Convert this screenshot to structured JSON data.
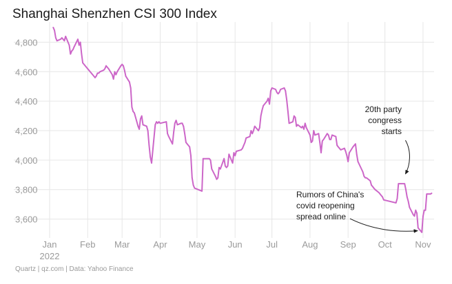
{
  "chart_data": {
    "type": "line",
    "title": "Shanghai Shenzhen CSI 300 Index",
    "source": "Quartz | qz.com | Data: Yahoo Finance",
    "xlabel": "",
    "ylabel": "",
    "grid": true,
    "ylim": [
      3500,
      4900
    ],
    "yticks": [
      3600,
      3800,
      4000,
      4200,
      4400,
      4600,
      4800
    ],
    "ytick_labels": [
      "3,600",
      "3,800",
      "4,000",
      "4,200",
      "4,400",
      "4,600",
      "4,800"
    ],
    "xticks": [
      {
        "date": "2022-01-01",
        "label": "Jan"
      },
      {
        "date": "2022-02-01",
        "label": "Feb"
      },
      {
        "date": "2022-03-01",
        "label": "Mar"
      },
      {
        "date": "2022-04-01",
        "label": "Apr"
      },
      {
        "date": "2022-05-01",
        "label": "May"
      },
      {
        "date": "2022-06-01",
        "label": "Jun"
      },
      {
        "date": "2022-07-01",
        "label": "Jul"
      },
      {
        "date": "2022-08-01",
        "label": "Aug"
      },
      {
        "date": "2022-09-01",
        "label": "Sep"
      },
      {
        "date": "2022-10-01",
        "label": "Oct"
      },
      {
        "date": "2022-11-01",
        "label": "Nov"
      }
    ],
    "year_label": "2022",
    "line_color": "#cc66c8",
    "series": [
      {
        "points": [
          [
            "2022-01-04",
            4900
          ],
          [
            "2022-01-05",
            4880
          ],
          [
            "2022-01-06",
            4830
          ],
          [
            "2022-01-07",
            4810
          ],
          [
            "2022-01-10",
            4820
          ],
          [
            "2022-01-11",
            4830
          ],
          [
            "2022-01-12",
            4820
          ],
          [
            "2022-01-13",
            4810
          ],
          [
            "2022-01-14",
            4840
          ],
          [
            "2022-01-17",
            4780
          ],
          [
            "2022-01-18",
            4720
          ],
          [
            "2022-01-19",
            4740
          ],
          [
            "2022-01-20",
            4750
          ],
          [
            "2022-01-21",
            4770
          ],
          [
            "2022-01-24",
            4820
          ],
          [
            "2022-01-25",
            4780
          ],
          [
            "2022-01-26",
            4800
          ],
          [
            "2022-01-27",
            4720
          ],
          [
            "2022-01-28",
            4660
          ],
          [
            "2022-02-07",
            4560
          ],
          [
            "2022-02-08",
            4570
          ],
          [
            "2022-02-09",
            4590
          ],
          [
            "2022-02-10",
            4590
          ],
          [
            "2022-02-11",
            4600
          ],
          [
            "2022-02-14",
            4610
          ],
          [
            "2022-02-15",
            4620
          ],
          [
            "2022-02-16",
            4640
          ],
          [
            "2022-02-17",
            4630
          ],
          [
            "2022-02-18",
            4620
          ],
          [
            "2022-02-21",
            4580
          ],
          [
            "2022-02-22",
            4550
          ],
          [
            "2022-02-23",
            4600
          ],
          [
            "2022-02-24",
            4580
          ],
          [
            "2022-02-25",
            4600
          ],
          [
            "2022-02-28",
            4640
          ],
          [
            "2022-03-01",
            4650
          ],
          [
            "2022-03-02",
            4640
          ],
          [
            "2022-03-03",
            4610
          ],
          [
            "2022-03-04",
            4570
          ],
          [
            "2022-03-07",
            4530
          ],
          [
            "2022-03-08",
            4490
          ],
          [
            "2022-03-09",
            4360
          ],
          [
            "2022-03-10",
            4330
          ],
          [
            "2022-03-11",
            4320
          ],
          [
            "2022-03-14",
            4230
          ],
          [
            "2022-03-15",
            4210
          ],
          [
            "2022-03-16",
            4280
          ],
          [
            "2022-03-17",
            4300
          ],
          [
            "2022-03-18",
            4240
          ],
          [
            "2022-03-21",
            4230
          ],
          [
            "2022-03-22",
            4200
          ],
          [
            "2022-03-23",
            4100
          ],
          [
            "2022-03-24",
            4020
          ],
          [
            "2022-03-25",
            3980
          ],
          [
            "2022-03-28",
            4240
          ],
          [
            "2022-03-29",
            4260
          ],
          [
            "2022-03-30",
            4250
          ],
          [
            "2022-03-31",
            4260
          ],
          [
            "2022-04-01",
            4250
          ],
          [
            "2022-04-06",
            4260
          ],
          [
            "2022-04-07",
            4180
          ],
          [
            "2022-04-08",
            4160
          ],
          [
            "2022-04-11",
            4110
          ],
          [
            "2022-04-12",
            4190
          ],
          [
            "2022-04-13",
            4250
          ],
          [
            "2022-04-14",
            4270
          ],
          [
            "2022-04-15",
            4240
          ],
          [
            "2022-04-18",
            4250
          ],
          [
            "2022-04-19",
            4250
          ],
          [
            "2022-04-20",
            4230
          ],
          [
            "2022-04-21",
            4180
          ],
          [
            "2022-04-22",
            4120
          ],
          [
            "2022-04-25",
            4090
          ],
          [
            "2022-04-26",
            4030
          ],
          [
            "2022-04-27",
            3880
          ],
          [
            "2022-04-28",
            3830
          ],
          [
            "2022-04-29",
            3810
          ],
          [
            "2022-05-05",
            3790
          ],
          [
            "2022-05-06",
            4010
          ],
          [
            "2022-05-09",
            4010
          ],
          [
            "2022-05-10",
            4010
          ],
          [
            "2022-05-11",
            4010
          ],
          [
            "2022-05-12",
            4000
          ],
          [
            "2022-05-13",
            3940
          ],
          [
            "2022-05-16",
            3890
          ],
          [
            "2022-05-17",
            3870
          ],
          [
            "2022-05-18",
            3880
          ],
          [
            "2022-05-19",
            3950
          ],
          [
            "2022-05-20",
            3940
          ],
          [
            "2022-05-23",
            4010
          ],
          [
            "2022-05-24",
            3960
          ],
          [
            "2022-05-25",
            3950
          ],
          [
            "2022-05-26",
            3960
          ],
          [
            "2022-05-27",
            4040
          ],
          [
            "2022-05-30",
            3980
          ],
          [
            "2022-05-31",
            4050
          ],
          [
            "2022-06-01",
            4030
          ],
          [
            "2022-06-02",
            4060
          ],
          [
            "2022-06-06",
            4070
          ],
          [
            "2022-06-07",
            4080
          ],
          [
            "2022-06-08",
            4100
          ],
          [
            "2022-06-09",
            4120
          ],
          [
            "2022-06-10",
            4150
          ],
          [
            "2022-06-13",
            4160
          ],
          [
            "2022-06-14",
            4200
          ],
          [
            "2022-06-15",
            4180
          ],
          [
            "2022-06-16",
            4200
          ],
          [
            "2022-06-17",
            4230
          ],
          [
            "2022-06-20",
            4200
          ],
          [
            "2022-06-21",
            4220
          ],
          [
            "2022-06-22",
            4300
          ],
          [
            "2022-06-23",
            4340
          ],
          [
            "2022-06-24",
            4370
          ],
          [
            "2022-06-27",
            4400
          ],
          [
            "2022-06-28",
            4420
          ],
          [
            "2022-06-29",
            4380
          ],
          [
            "2022-06-30",
            4470
          ],
          [
            "2022-07-01",
            4490
          ],
          [
            "2022-07-04",
            4480
          ],
          [
            "2022-07-05",
            4460
          ],
          [
            "2022-07-06",
            4450
          ],
          [
            "2022-07-07",
            4460
          ],
          [
            "2022-07-08",
            4480
          ],
          [
            "2022-07-11",
            4490
          ],
          [
            "2022-07-12",
            4470
          ],
          [
            "2022-07-13",
            4410
          ],
          [
            "2022-07-14",
            4330
          ],
          [
            "2022-07-15",
            4250
          ],
          [
            "2022-07-18",
            4260
          ],
          [
            "2022-07-19",
            4300
          ],
          [
            "2022-07-20",
            4290
          ],
          [
            "2022-07-21",
            4230
          ],
          [
            "2022-07-22",
            4240
          ],
          [
            "2022-07-25",
            4220
          ],
          [
            "2022-07-26",
            4230
          ],
          [
            "2022-07-27",
            4210
          ],
          [
            "2022-07-28",
            4250
          ],
          [
            "2022-07-29",
            4220
          ],
          [
            "2022-08-01",
            4170
          ],
          [
            "2022-08-02",
            4120
          ],
          [
            "2022-08-03",
            4130
          ],
          [
            "2022-08-04",
            4200
          ],
          [
            "2022-08-05",
            4170
          ],
          [
            "2022-08-08",
            4180
          ],
          [
            "2022-08-09",
            4120
          ],
          [
            "2022-08-10",
            4050
          ],
          [
            "2022-08-11",
            4130
          ],
          [
            "2022-08-12",
            4140
          ],
          [
            "2022-08-15",
            4180
          ],
          [
            "2022-08-16",
            4170
          ],
          [
            "2022-08-17",
            4140
          ],
          [
            "2022-08-18",
            4140
          ],
          [
            "2022-08-19",
            4170
          ],
          [
            "2022-08-22",
            4160
          ],
          [
            "2022-08-23",
            4100
          ],
          [
            "2022-08-24",
            4090
          ],
          [
            "2022-08-25",
            4080
          ],
          [
            "2022-08-26",
            4070
          ],
          [
            "2022-08-29",
            4080
          ],
          [
            "2022-08-30",
            4060
          ],
          [
            "2022-08-31",
            4030
          ],
          [
            "2022-09-01",
            3990
          ],
          [
            "2022-09-02",
            4050
          ],
          [
            "2022-09-05",
            4090
          ],
          [
            "2022-09-06",
            4100
          ],
          [
            "2022-09-07",
            4110
          ],
          [
            "2022-09-08",
            4040
          ],
          [
            "2022-09-09",
            3990
          ],
          [
            "2022-09-13",
            3920
          ],
          [
            "2022-09-14",
            3890
          ],
          [
            "2022-09-15",
            3880
          ],
          [
            "2022-09-16",
            3880
          ],
          [
            "2022-09-19",
            3860
          ],
          [
            "2022-09-20",
            3830
          ],
          [
            "2022-09-21",
            3820
          ],
          [
            "2022-09-22",
            3810
          ],
          [
            "2022-09-23",
            3800
          ],
          [
            "2022-09-26",
            3780
          ],
          [
            "2022-09-27",
            3770
          ],
          [
            "2022-09-28",
            3760
          ],
          [
            "2022-09-29",
            3750
          ],
          [
            "2022-09-30",
            3730
          ],
          [
            "2022-10-10",
            3710
          ],
          [
            "2022-10-11",
            3740
          ],
          [
            "2022-10-12",
            3840
          ],
          [
            "2022-10-13",
            3840
          ],
          [
            "2022-10-14",
            3840
          ],
          [
            "2022-10-17",
            3840
          ],
          [
            "2022-10-18",
            3800
          ],
          [
            "2022-10-19",
            3750
          ],
          [
            "2022-10-20",
            3720
          ],
          [
            "2022-10-21",
            3680
          ],
          [
            "2022-10-24",
            3630
          ],
          [
            "2022-10-25",
            3620
          ],
          [
            "2022-10-26",
            3660
          ],
          [
            "2022-10-27",
            3640
          ],
          [
            "2022-10-28",
            3540
          ],
          [
            "2022-10-31",
            3510
          ],
          [
            "2022-11-01",
            3620
          ],
          [
            "2022-11-02",
            3660
          ],
          [
            "2022-11-03",
            3660
          ],
          [
            "2022-11-04",
            3770
          ],
          [
            "2022-11-07",
            3770
          ],
          [
            "2022-11-08",
            3775
          ]
        ]
      }
    ],
    "annotations": [
      {
        "lines": [
          "20th party",
          "congress",
          "starts"
        ],
        "target_date": "2022-10-16",
        "target_value": 3850
      },
      {
        "lines": [
          "Rumors of China's",
          "covid reopening",
          "spread online"
        ],
        "target_date": "2022-10-31",
        "target_value": 3530
      }
    ]
  }
}
